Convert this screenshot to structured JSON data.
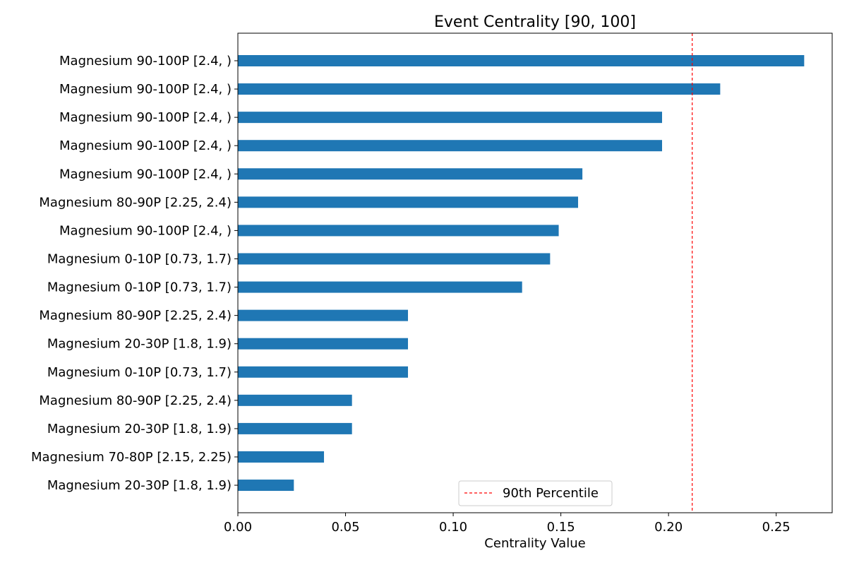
{
  "chart_data": {
    "type": "bar",
    "orientation": "horizontal",
    "title": "Event Centrality [90, 100]",
    "xlabel": "Centrality Value",
    "ylabel": "",
    "xlim": [
      0.0,
      0.276
    ],
    "xticks": [
      0.0,
      0.05,
      0.1,
      0.15,
      0.2,
      0.25
    ],
    "xtick_labels": [
      "0.00",
      "0.05",
      "0.10",
      "0.15",
      "0.20",
      "0.25"
    ],
    "grid": false,
    "bar_color": "#1f77b4",
    "categories": [
      "Magnesium 90-100P [2.4, )",
      "Magnesium 90-100P [2.4, )",
      "Magnesium 90-100P [2.4, )",
      "Magnesium 90-100P [2.4, )",
      "Magnesium 90-100P [2.4, )",
      "Magnesium 80-90P [2.25, 2.4)",
      "Magnesium 90-100P [2.4, )",
      "Magnesium 0-10P [0.73, 1.7)",
      "Magnesium 0-10P [0.73, 1.7)",
      "Magnesium 80-90P [2.25, 2.4)",
      "Magnesium 20-30P [1.8, 1.9)",
      "Magnesium 0-10P [0.73, 1.7)",
      "Magnesium 80-90P [2.25, 2.4)",
      "Magnesium 20-30P [1.8, 1.9)",
      "Magnesium 70-80P [2.15, 2.25)",
      "Magnesium 20-30P [1.8, 1.9)"
    ],
    "values": [
      0.263,
      0.224,
      0.197,
      0.197,
      0.16,
      0.158,
      0.149,
      0.145,
      0.132,
      0.079,
      0.079,
      0.079,
      0.053,
      0.053,
      0.04,
      0.026
    ],
    "reference_line": {
      "value": 0.211,
      "label": "90th Percentile",
      "color": "#ff0000",
      "style": "dashed"
    },
    "legend": {
      "position": "lower-center",
      "entries": [
        "90th Percentile"
      ]
    }
  }
}
